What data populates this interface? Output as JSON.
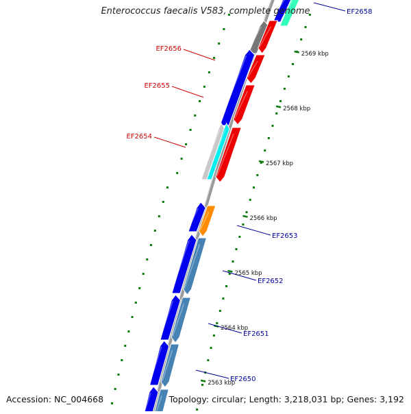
{
  "title": "Enterococcus faecalis V583, complete genome",
  "accession": "Accession: NC_004668",
  "topology": "Topology: circular; Length: 3,218,031 bp; Genes: 3,192",
  "colors": {
    "backbone": "#888888",
    "tick": "#0a7a0a",
    "forward_gene": "#0000ee",
    "reverse_gene": "#ee0000",
    "orange_gene": "#ff8c00",
    "steel_gene": "#4682b4",
    "cyan_gene": "#00eeee",
    "aqua_gene": "#33ffbb",
    "gray_gene": "#777777",
    "lightgray_gene": "#c8c8c8",
    "red_label": "#cc0000",
    "blue_label": "#000099"
  },
  "scale_labels": [
    "2569 kbp",
    "2568 kbp",
    "2567 kbp",
    "2566 kbp",
    "2565 kbp",
    "2564 kbp",
    "2563 kbp"
  ],
  "gene_labels": [
    {
      "name": "EF2658",
      "color": "blue"
    },
    {
      "name": "EF2656",
      "color": "red"
    },
    {
      "name": "EF2655",
      "color": "red"
    },
    {
      "name": "EF2654",
      "color": "red"
    },
    {
      "name": "EF2653",
      "color": "blue"
    },
    {
      "name": "EF2652",
      "color": "blue"
    },
    {
      "name": "EF2651",
      "color": "blue"
    },
    {
      "name": "EF2650",
      "color": "blue"
    }
  ]
}
